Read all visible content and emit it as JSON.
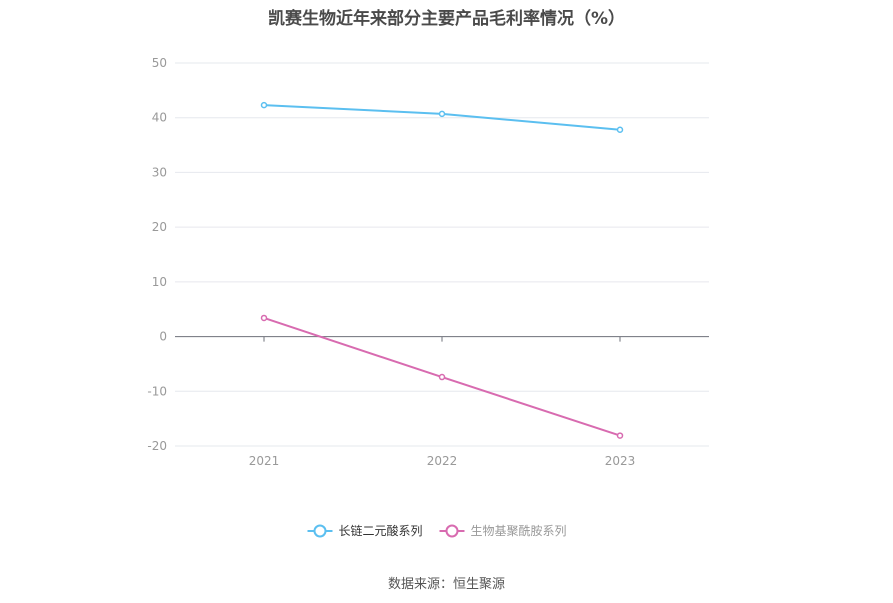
{
  "title": "凯赛生物近年来部分主要产品毛利率情况（%）",
  "source": "数据来源：恒生聚源",
  "chart_data": {
    "type": "line",
    "title": "凯赛生物近年来部分主要产品毛利率情况（%）",
    "categories": [
      "2021",
      "2022",
      "2023"
    ],
    "series": [
      {
        "name": "长链二元酸系列",
        "values": [
          42.3,
          40.7,
          37.8
        ],
        "color": "#5bbff0"
      },
      {
        "name": "生物基聚酰胺系列",
        "values": [
          3.4,
          -7.4,
          -18.1
        ],
        "color": "#d86bb0"
      }
    ],
    "ylim": [
      -20,
      50
    ],
    "yticks": [
      50,
      40,
      30,
      20,
      10,
      0,
      -10,
      -20
    ],
    "grid": true,
    "legend": "bottom-center"
  }
}
